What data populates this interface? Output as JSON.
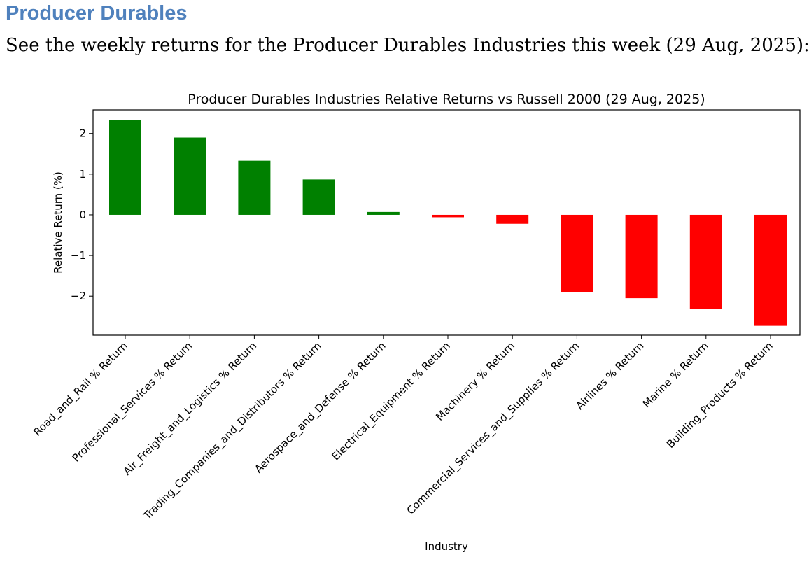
{
  "page": {
    "heading": "Producer Durables",
    "subtitle": "See the weekly returns for the Producer Durables Industries this week (29 Aug, 2025):"
  },
  "chart_data": {
    "type": "bar",
    "title": "Producer Durables Industries Relative Returns vs Russell 2000 (29 Aug, 2025)",
    "xlabel": "Industry",
    "ylabel": "Relative Return (%)",
    "ylim": [
      -2.96,
      2.58
    ],
    "yticks": [
      2,
      1,
      0,
      -1,
      -2
    ],
    "ytick_labels": [
      "2",
      "1",
      "0",
      "−1",
      "−2"
    ],
    "grid": false,
    "categories": [
      "Road_and_Rail % Return",
      "Professional_Services % Return",
      "Air_Freight_and_Logistics % Return",
      "Trading_Companies_and_Distributors % Return",
      "Aerospace_and_Defense % Return",
      "Electrical_Equipment % Return",
      "Machinery % Return",
      "Commercial_Services_and_Supplies % Return",
      "Airlines % Return",
      "Marine % Return",
      "Building_Products % Return"
    ],
    "values": [
      2.33,
      1.9,
      1.33,
      0.87,
      0.07,
      -0.06,
      -0.22,
      -1.9,
      -2.05,
      -2.31,
      -2.73
    ],
    "positive_color": "#008000",
    "negative_color": "#ff0000"
  }
}
